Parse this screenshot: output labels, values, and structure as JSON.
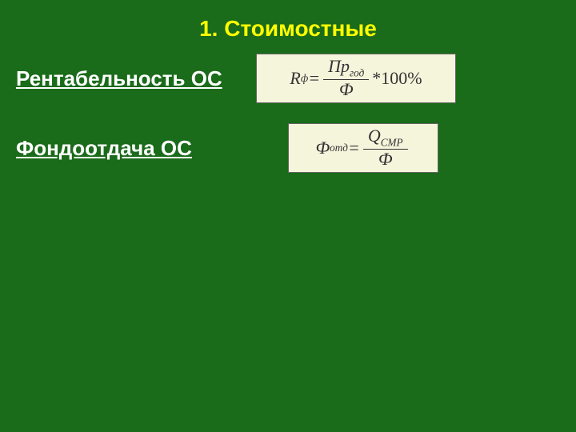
{
  "slide": {
    "title": "1. Стоимостные",
    "background_color": "#1a6b1a",
    "title_color": "#ffff00",
    "label_color": "#ffffff",
    "formula_bg": "#f5f5dc",
    "formula_text_color": "#333333",
    "title_fontsize": 28,
    "label_fontsize": 26,
    "formula_fontsize": 22
  },
  "rows": [
    {
      "label": "Рентабельность ОС",
      "formula": {
        "lhs_main": "R",
        "lhs_sub": "ф",
        "equals": " = ",
        "numerator_main": "Пр",
        "numerator_sub": "год",
        "denominator": "Ф",
        "tail": " *100%"
      }
    },
    {
      "label": "Фондоотдача ОС",
      "formula": {
        "lhs_main": "Ф",
        "lhs_sub": "отд",
        "equals": " = ",
        "numerator_main": "Q",
        "numerator_sub": "СМР",
        "denominator": "Ф",
        "tail": ""
      }
    }
  ]
}
